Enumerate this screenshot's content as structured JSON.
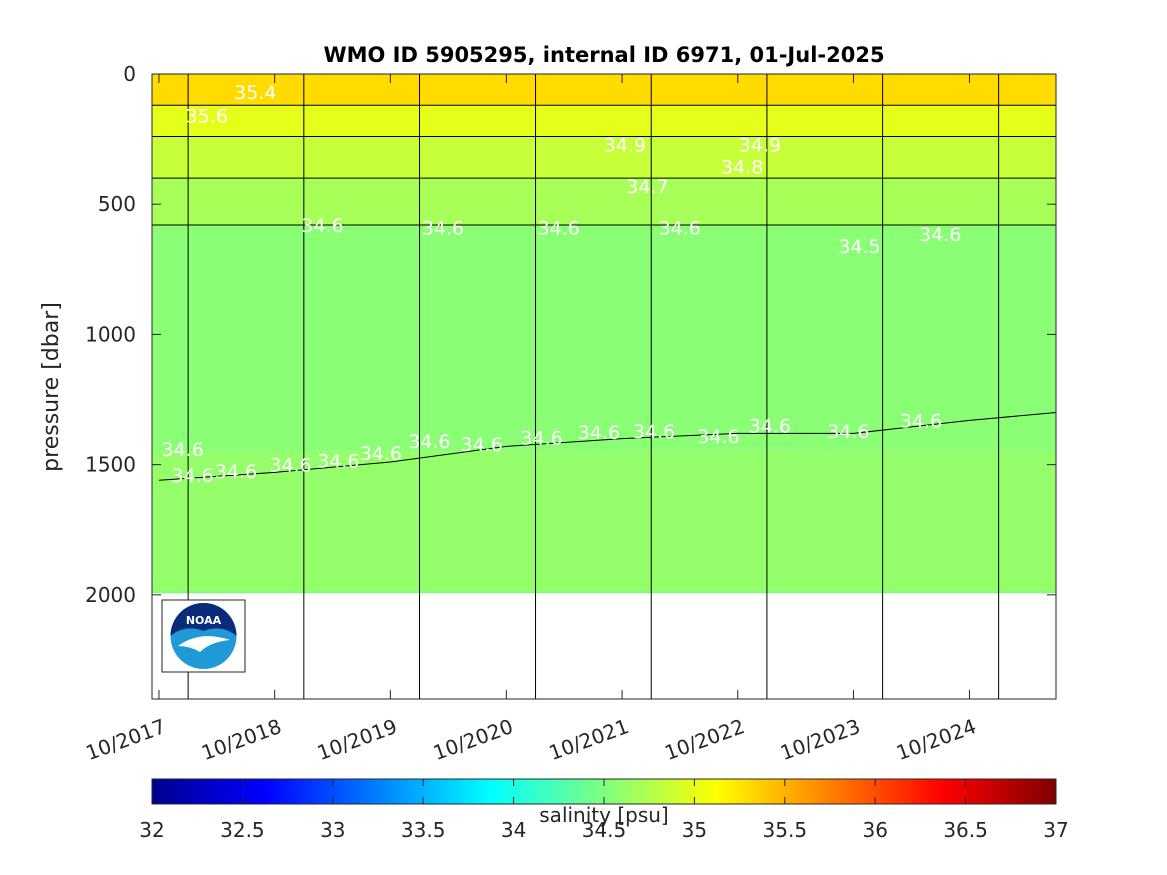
{
  "chart_data": {
    "type": "heatmap",
    "title": "WMO ID 5905295, internal ID 6971, 01-Jul-2025",
    "xlabel": "",
    "ylabel": "pressure [dbar]",
    "x_ticks": [
      "10/2017",
      "10/2018",
      "10/2019",
      "10/2020",
      "10/2021",
      "10/2022",
      "10/2023",
      "10/2024"
    ],
    "x_tick_dates": [
      "2017-10-01",
      "2018-10-01",
      "2019-10-01",
      "2020-10-01",
      "2021-10-01",
      "2022-10-01",
      "2023-10-01",
      "2024-10-01"
    ],
    "xlim": [
      "2017-09-09",
      "2025-07-01"
    ],
    "year_lines": [
      "2018-01-01",
      "2019-01-01",
      "2020-01-01",
      "2021-01-01",
      "2022-01-01",
      "2023-01-01",
      "2024-01-01",
      "2025-01-01"
    ],
    "y_ticks": [
      0,
      500,
      1000,
      1500,
      2000
    ],
    "ylim": [
      0,
      2400
    ],
    "y_reversed": true,
    "colorbar": {
      "label": "salinity [psu]",
      "min": 32,
      "max": 37,
      "ticks": [
        "32",
        "32.5",
        "33",
        "33.5",
        "34",
        "34.5",
        "35",
        "35.5",
        "36",
        "36.5",
        "37"
      ],
      "colormap": "jet"
    },
    "depth_layers_dbar": [
      {
        "top": 0,
        "bottom": 120,
        "salinity": 35.3
      },
      {
        "top": 120,
        "bottom": 240,
        "salinity": 35.0
      },
      {
        "top": 240,
        "bottom": 400,
        "salinity": 34.85
      },
      {
        "top": 400,
        "bottom": 580,
        "salinity": 34.7
      },
      {
        "top": 580,
        "bottom": 1450,
        "salinity": 34.55
      },
      {
        "top": 1450,
        "bottom": 1990,
        "salinity": 34.6
      }
    ],
    "contour_34_6_depth": [
      {
        "date": "2017-10-01",
        "pressure": 1560
      },
      {
        "date": "2018-10-01",
        "pressure": 1530
      },
      {
        "date": "2019-10-01",
        "pressure": 1490
      },
      {
        "date": "2020-10-01",
        "pressure": 1430
      },
      {
        "date": "2021-10-01",
        "pressure": 1400
      },
      {
        "date": "2022-10-01",
        "pressure": 1380
      },
      {
        "date": "2023-10-01",
        "pressure": 1380
      },
      {
        "date": "2024-10-01",
        "pressure": 1330
      },
      {
        "date": "2025-07-01",
        "pressure": 1300
      }
    ],
    "max_profile_pressure": 1990,
    "contour_labels": [
      {
        "text": "34.6",
        "date": "2017-12-15",
        "pressure": 1440
      },
      {
        "text": "34.6",
        "date": "2018-01-15",
        "pressure": 1540
      },
      {
        "text": "34.6",
        "date": "2018-06-01",
        "pressure": 1525
      },
      {
        "text": "34.6",
        "date": "2018-11-20",
        "pressure": 1500
      },
      {
        "text": "34.6",
        "date": "2019-04-20",
        "pressure": 1485
      },
      {
        "text": "34.6",
        "date": "2019-09-01",
        "pressure": 1455
      },
      {
        "text": "34.6",
        "date": "2020-02-01",
        "pressure": 1410
      },
      {
        "text": "34.6",
        "date": "2020-07-15",
        "pressure": 1420
      },
      {
        "text": "34.6",
        "date": "2021-01-20",
        "pressure": 1395
      },
      {
        "text": "34.6",
        "date": "2021-07-20",
        "pressure": 1375
      },
      {
        "text": "34.6",
        "date": "2022-01-10",
        "pressure": 1370
      },
      {
        "text": "34.6",
        "date": "2022-08-01",
        "pressure": 1390
      },
      {
        "text": "34.6",
        "date": "2023-01-10",
        "pressure": 1350
      },
      {
        "text": "34.6",
        "date": "2023-09-15",
        "pressure": 1370
      },
      {
        "text": "34.6",
        "date": "2024-05-01",
        "pressure": 1330
      },
      {
        "text": "34.6",
        "date": "2019-03-01",
        "pressure": 580
      },
      {
        "text": "34.6",
        "date": "2020-03-15",
        "pressure": 590
      },
      {
        "text": "34.6",
        "date": "2021-03-15",
        "pressure": 590
      },
      {
        "text": "34.6",
        "date": "2022-04-01",
        "pressure": 590
      },
      {
        "text": "34.6",
        "date": "2024-07-01",
        "pressure": 615
      },
      {
        "text": "34.5",
        "date": "2023-10-20",
        "pressure": 660
      },
      {
        "text": "34.7",
        "date": "2021-12-20",
        "pressure": 430
      },
      {
        "text": "34.8",
        "date": "2022-10-15",
        "pressure": 355
      },
      {
        "text": "34.9",
        "date": "2021-10-10",
        "pressure": 270
      },
      {
        "text": "34.9",
        "date": "2022-12-10",
        "pressure": 270
      },
      {
        "text": "35.4",
        "date": "2018-08-01",
        "pressure": 70
      },
      {
        "text": "35.6",
        "date": "2018-03-01",
        "pressure": 160
      }
    ]
  }
}
